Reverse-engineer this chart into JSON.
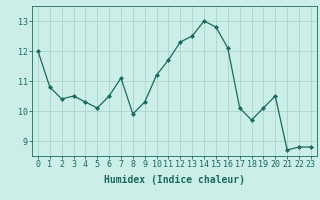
{
  "x": [
    0,
    1,
    2,
    3,
    4,
    5,
    6,
    7,
    8,
    9,
    10,
    11,
    12,
    13,
    14,
    15,
    16,
    17,
    18,
    19,
    20,
    21,
    22,
    23
  ],
  "y": [
    12.0,
    10.8,
    10.4,
    10.5,
    10.3,
    10.1,
    10.5,
    11.1,
    9.9,
    10.3,
    11.2,
    11.7,
    12.3,
    12.5,
    13.0,
    12.8,
    12.1,
    10.1,
    9.7,
    10.1,
    10.5,
    8.7,
    8.8,
    8.8
  ],
  "line_color": "#1a6b5a",
  "marker": "D",
  "marker_size": 2,
  "bg_color": "#cceee8",
  "grid_color": "#aad4cc",
  "axis_color": "#1a6b5a",
  "xlabel": "Humidex (Indice chaleur)",
  "xlabel_fontsize": 7,
  "tick_fontsize": 6,
  "ylim": [
    8.5,
    13.5
  ],
  "yticks": [
    9,
    10,
    11,
    12,
    13
  ],
  "xticks": [
    0,
    1,
    2,
    3,
    4,
    5,
    6,
    7,
    8,
    9,
    10,
    11,
    12,
    13,
    14,
    15,
    16,
    17,
    18,
    19,
    20,
    21,
    22,
    23
  ]
}
